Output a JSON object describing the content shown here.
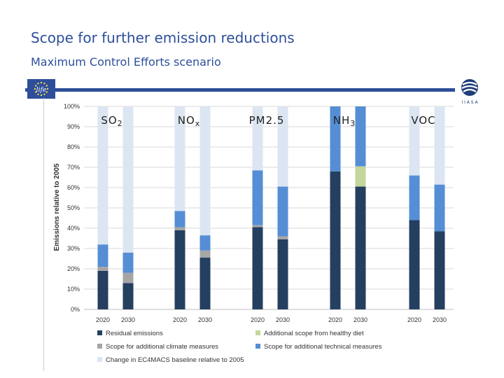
{
  "page": {
    "title": "Scope for further emission reductions",
    "subtitle": "Maximum Control Efforts scenario"
  },
  "logos": {
    "left": "eu-flag-logo",
    "right": "iiasa-logo",
    "right_text": "I I A S A"
  },
  "colors": {
    "residual": "#243f60",
    "climate": "#a6a6a6",
    "diet": "#c3d69b",
    "technical": "#558ed5",
    "baseline": "#dce6f2",
    "header": "#2d4f9a"
  },
  "chart_data": {
    "type": "bar",
    "stacked": true,
    "ylabel": "Emissions relative to 2005",
    "ylim": [
      0,
      100
    ],
    "yticks": [
      "0%",
      "10%",
      "20%",
      "30%",
      "40%",
      "50%",
      "60%",
      "70%",
      "80%",
      "90%",
      "100%"
    ],
    "grid": true,
    "groups": [
      {
        "label": "SO",
        "sub": "2"
      },
      {
        "label": "NO",
        "sub": "x"
      },
      {
        "label": "PM2.5",
        "sub": ""
      },
      {
        "label": "NH",
        "sub": "3"
      },
      {
        "label": "VOC",
        "sub": ""
      }
    ],
    "categories": [
      "2020",
      "2030",
      "2020",
      "2030",
      "2020",
      "2030",
      "2020",
      "2030",
      "2020",
      "2030"
    ],
    "series": [
      {
        "name": "Residual emissions",
        "color_key": "residual",
        "values": [
          19,
          13,
          39,
          25.5,
          40.5,
          34.5,
          68,
          60.5,
          44,
          38.5
        ]
      },
      {
        "name": "Scope for additional climate measures",
        "color_key": "climate",
        "values": [
          2,
          5,
          1.5,
          3.5,
          1,
          1.5,
          0,
          0,
          0,
          0
        ]
      },
      {
        "name": "Additional scope from healthy diet",
        "color_key": "diet",
        "values": [
          0,
          0,
          0,
          0,
          0,
          0,
          0,
          10,
          0,
          0
        ]
      },
      {
        "name": "Scope for additional technical measures",
        "color_key": "technical",
        "values": [
          11,
          10,
          8,
          7.5,
          27,
          24.5,
          32,
          29.5,
          22,
          23
        ]
      },
      {
        "name": "Change in EC4MACS baseline relative to 2005",
        "color_key": "baseline",
        "values": [
          68,
          72,
          51.5,
          63.5,
          31.5,
          39.5,
          0,
          0,
          34,
          38.5
        ]
      }
    ],
    "legend": {
      "position": "bottom",
      "left_column": [
        "Residual emissions",
        "Scope for additional climate measures",
        "Change in EC4MACS baseline relative to 2005"
      ],
      "right_column": [
        "Additional scope from healthy diet",
        "Scope for additional technical measures"
      ]
    }
  }
}
